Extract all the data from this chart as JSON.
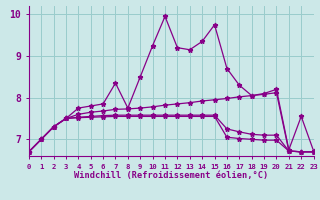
{
  "background_color": "#cce8e8",
  "grid_color": "#99cccc",
  "line_color": "#880088",
  "xlim": [
    0,
    23
  ],
  "ylim": [
    6.6,
    10.2
  ],
  "yticks": [
    7,
    8,
    9,
    10
  ],
  "xtick_labels": [
    "0",
    "1",
    "2",
    "3",
    "4",
    "5",
    "6",
    "7",
    "8",
    "9",
    "10",
    "11",
    "12",
    "13",
    "14",
    "15",
    "16",
    "17",
    "18",
    "19",
    "20",
    "21",
    "22",
    "23"
  ],
  "xlabel": "Windchill (Refroidissement éolien,°C)",
  "series": [
    [
      6.7,
      7.0,
      7.3,
      7.5,
      7.75,
      7.8,
      7.85,
      8.35,
      7.75,
      8.5,
      9.25,
      9.95,
      9.2,
      9.15,
      9.35,
      9.75,
      8.7,
      8.3,
      8.05,
      8.1,
      8.2,
      6.75,
      7.55,
      6.72
    ],
    [
      6.7,
      7.0,
      7.3,
      7.5,
      7.6,
      7.65,
      7.68,
      7.72,
      7.73,
      7.75,
      7.78,
      7.82,
      7.85,
      7.88,
      7.92,
      7.95,
      7.98,
      8.02,
      8.05,
      8.08,
      8.12,
      6.72,
      6.7,
      6.7
    ],
    [
      6.7,
      7.0,
      7.3,
      7.5,
      7.53,
      7.55,
      7.57,
      7.58,
      7.58,
      7.58,
      7.58,
      7.58,
      7.58,
      7.58,
      7.58,
      7.58,
      7.25,
      7.18,
      7.12,
      7.1,
      7.1,
      6.72,
      6.7,
      6.7
    ],
    [
      6.7,
      7.0,
      7.3,
      7.5,
      7.52,
      7.53,
      7.54,
      7.55,
      7.55,
      7.55,
      7.55,
      7.55,
      7.55,
      7.55,
      7.55,
      7.55,
      7.05,
      7.02,
      7.0,
      6.98,
      6.98,
      6.72,
      6.7,
      6.7
    ]
  ]
}
